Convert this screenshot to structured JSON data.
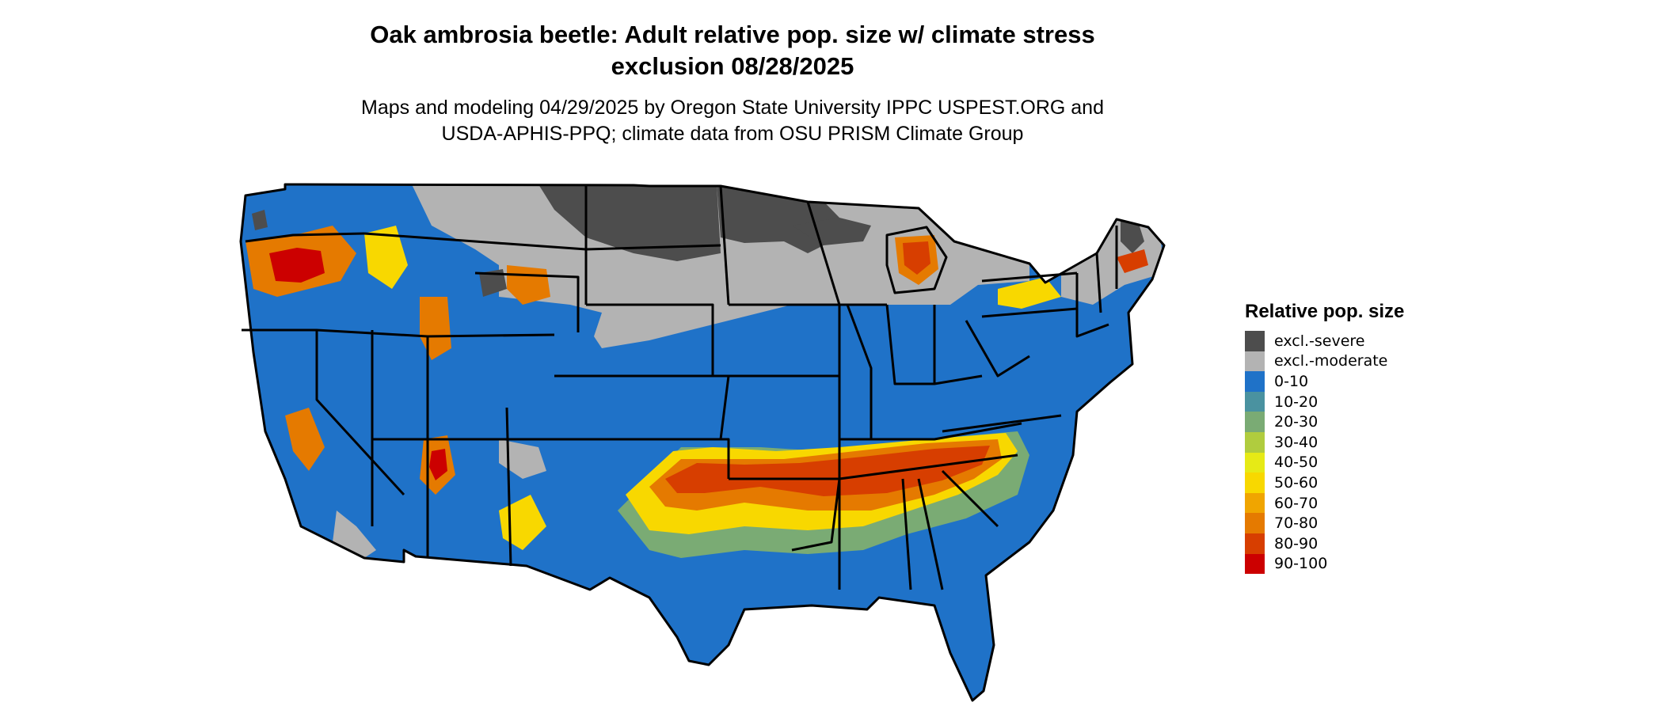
{
  "title": {
    "line1": "Oak ambrosia beetle: Adult relative pop. size w/ climate stress",
    "line2": "exclusion 08/28/2025"
  },
  "subtitle": {
    "line1": "Maps and modeling 04/29/2025 by Oregon State University IPPC USPEST.ORG and",
    "line2": "USDA-APHIS-PPQ; climate data from OSU PRISM Climate Group"
  },
  "legend": {
    "title": "Relative pop. size",
    "items": [
      {
        "label": "excl.-severe",
        "color": "#4d4d4d"
      },
      {
        "label": "excl.-moderate",
        "color": "#b3b3b3"
      },
      {
        "label": "0-10",
        "color": "#1f72c8"
      },
      {
        "label": "10-20",
        "color": "#4a92a0"
      },
      {
        "label": "20-30",
        "color": "#7aab74"
      },
      {
        "label": "30-40",
        "color": "#b0cc3e"
      },
      {
        "label": "40-50",
        "color": "#e6ea16"
      },
      {
        "label": "50-60",
        "color": "#f8d800"
      },
      {
        "label": "60-70",
        "color": "#f0a500"
      },
      {
        "label": "70-80",
        "color": "#e57a00"
      },
      {
        "label": "80-90",
        "color": "#d73e00"
      },
      {
        "label": "90-100",
        "color": "#cc0000"
      }
    ]
  },
  "map": {
    "region": "Contiguous United States",
    "state_border_color": "#000000"
  }
}
